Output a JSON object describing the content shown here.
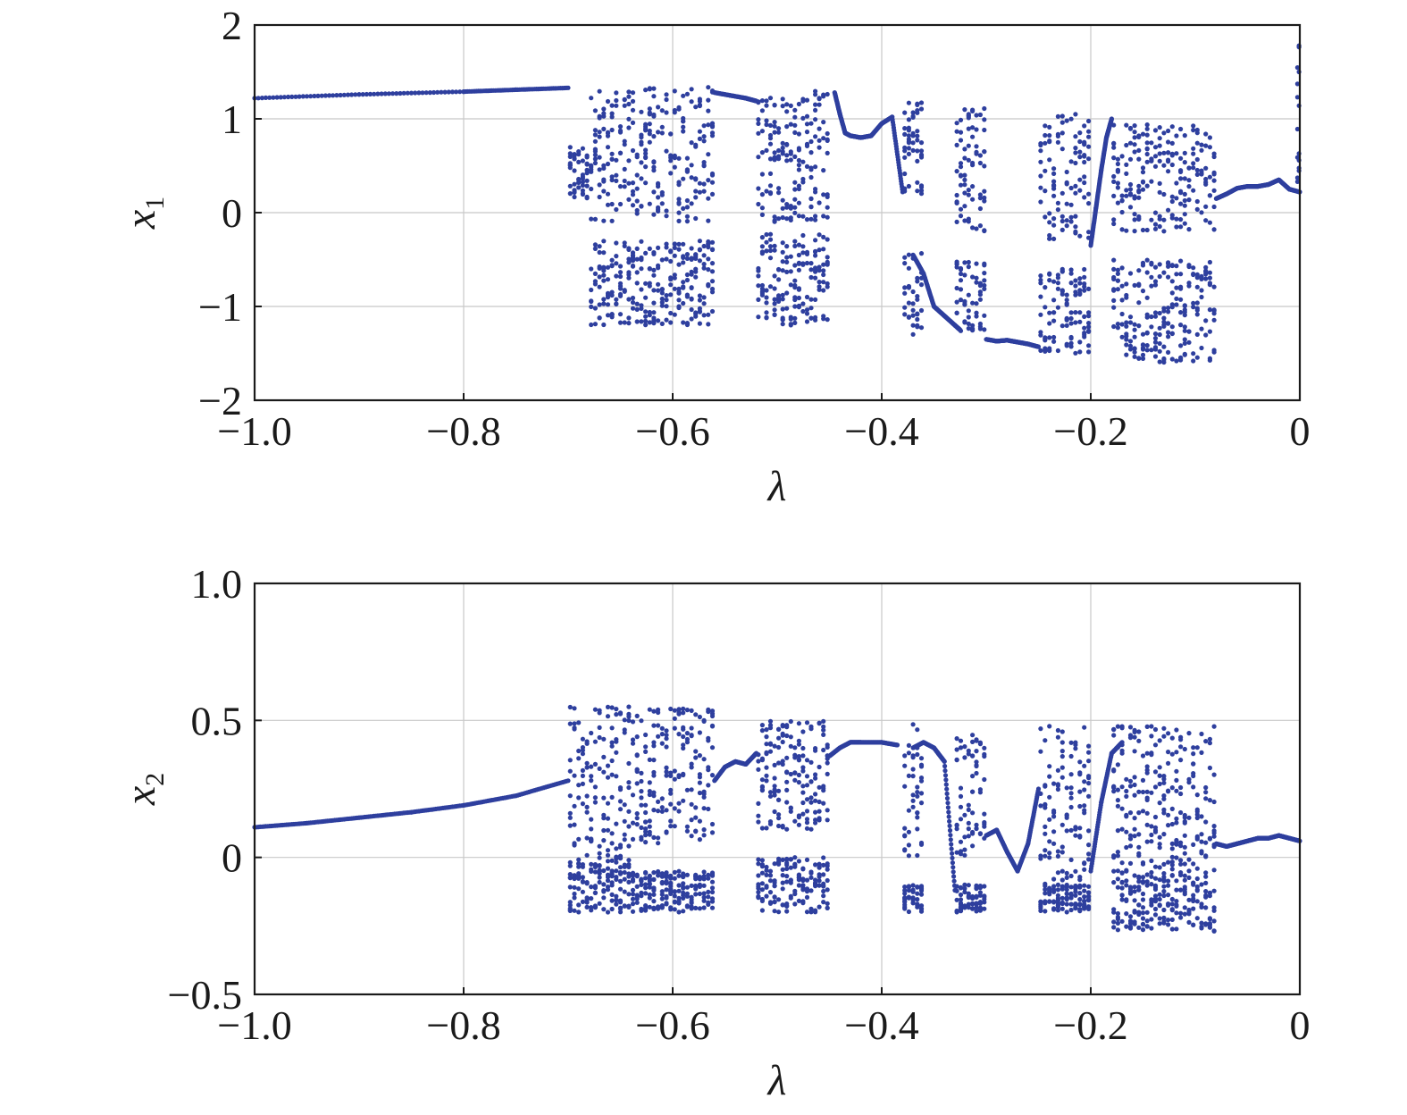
{
  "chart_data": [
    {
      "type": "scatter",
      "title": "",
      "xlabel": "λ",
      "ylabel": "x",
      "ylabel_subscript": "1",
      "xlim": [
        -1.0,
        0
      ],
      "ylim": [
        -2,
        2
      ],
      "xticks": [
        -1.0,
        -0.8,
        -0.6,
        -0.4,
        -0.2,
        0
      ],
      "xtick_labels": [
        "−1.0",
        "−0.8",
        "−0.6",
        "−0.4",
        "−0.2",
        "0"
      ],
      "yticks": [
        -2,
        -1,
        0,
        1,
        2
      ],
      "ytick_labels": [
        "−2",
        "−1",
        "0",
        "1",
        "2"
      ],
      "grid": true,
      "marker_color": "#2e3f9e",
      "series": [
        {
          "smooth_segments": [
            {
              "x": [
                -1.0,
                -0.9,
                -0.8,
                -0.75,
                -0.7
              ],
              "y": [
                1.22,
                1.26,
                1.29,
                1.31,
                1.33
              ]
            },
            {
              "x": [
                -0.56,
                -0.545,
                -0.53,
                -0.52
              ],
              "y": [
                1.28,
                1.25,
                1.22,
                1.19
              ]
            },
            {
              "x": [
                -0.445,
                -0.44,
                -0.435,
                -0.43,
                -0.42,
                -0.41,
                -0.4,
                -0.39,
                -0.38
              ],
              "y": [
                1.28,
                1.05,
                0.85,
                0.82,
                0.8,
                0.82,
                0.95,
                1.02,
                0.22
              ]
            },
            {
              "x": [
                -0.37,
                -0.36,
                -0.35,
                -0.34,
                -0.33,
                -0.325
              ],
              "y": [
                -0.45,
                -0.65,
                -1.0,
                -1.1,
                -1.2,
                -1.25
              ]
            },
            {
              "x": [
                -0.3,
                -0.29,
                -0.28,
                -0.27,
                -0.26,
                -0.25
              ],
              "y": [
                -1.35,
                -1.37,
                -1.36,
                -1.38,
                -1.4,
                -1.43
              ]
            },
            {
              "x": [
                -0.2,
                -0.195,
                -0.19,
                -0.185,
                -0.18
              ],
              "y": [
                -0.35,
                0.05,
                0.45,
                0.8,
                1.0
              ]
            },
            {
              "x": [
                -0.08,
                -0.07,
                -0.06,
                -0.05,
                -0.04,
                -0.03,
                -0.02,
                -0.01,
                0.0
              ],
              "y": [
                0.15,
                0.2,
                0.26,
                0.28,
                0.28,
                0.3,
                0.35,
                0.25,
                0.22
              ]
            }
          ],
          "scatter_bands": [
            {
              "x_min": -0.7,
              "x_max": -0.68,
              "y_ranges": [
                [
                  0.1,
                  0.7
                ]
              ]
            },
            {
              "x_min": -0.68,
              "x_max": -0.64,
              "y_ranges": [
                [
                  -0.1,
                  1.3
                ],
                [
                  -1.2,
                  -0.3
                ]
              ]
            },
            {
              "x_min": -0.64,
              "x_max": -0.56,
              "y_ranges": [
                [
                  -0.1,
                  1.35
                ],
                [
                  -1.2,
                  -0.3
                ]
              ]
            },
            {
              "x_min": -0.52,
              "x_max": -0.45,
              "y_ranges": [
                [
                  -0.1,
                  1.3
                ],
                [
                  -1.2,
                  -0.2
                ]
              ]
            },
            {
              "x_min": -0.38,
              "x_max": -0.36,
              "y_ranges": [
                [
                  0.2,
                  1.25
                ],
                [
                  -1.3,
                  -0.4
                ]
              ]
            },
            {
              "x_min": -0.33,
              "x_max": -0.3,
              "y_ranges": [
                [
                  -0.2,
                  1.15
                ],
                [
                  -1.3,
                  -0.5
                ]
              ]
            },
            {
              "x_min": -0.25,
              "x_max": -0.2,
              "y_ranges": [
                [
                  -0.3,
                  1.05
                ],
                [
                  -1.5,
                  -0.6
                ]
              ]
            },
            {
              "x_min": -0.18,
              "x_max": -0.08,
              "y_ranges": [
                [
                  -0.2,
                  0.95
                ],
                [
                  -1.6,
                  -0.5
                ]
              ]
            },
            {
              "x_min": -0.003,
              "x_max": 0.0,
              "y_ranges": [
                [
                  0.2,
                  1.8
                ]
              ]
            }
          ]
        }
      ]
    },
    {
      "type": "scatter",
      "title": "",
      "xlabel": "λ",
      "ylabel": "x",
      "ylabel_subscript": "2",
      "xlim": [
        -1.0,
        0
      ],
      "ylim": [
        -0.5,
        1.0
      ],
      "xticks": [
        -1.0,
        -0.8,
        -0.6,
        -0.4,
        -0.2,
        0
      ],
      "xtick_labels": [
        "−1.0",
        "−0.8",
        "−0.6",
        "−0.4",
        "−0.2",
        "0"
      ],
      "yticks": [
        -0.5,
        0,
        0.5,
        1.0
      ],
      "ytick_labels": [
        "−0.5",
        "0",
        "0.5",
        "1.0"
      ],
      "grid": true,
      "marker_color": "#2e3f9e",
      "series": [
        {
          "smooth_segments": [
            {
              "x": [
                -1.0,
                -0.95,
                -0.9,
                -0.85,
                -0.8,
                -0.75,
                -0.7
              ],
              "y": [
                0.11,
                0.125,
                0.145,
                0.165,
                0.19,
                0.225,
                0.28
              ]
            },
            {
              "x": [
                -0.56,
                -0.55,
                -0.54,
                -0.53,
                -0.52
              ],
              "y": [
                0.28,
                0.33,
                0.35,
                0.34,
                0.38
              ]
            },
            {
              "x": [
                -0.45,
                -0.44,
                -0.43,
                -0.42,
                -0.4,
                -0.385
              ],
              "y": [
                0.37,
                0.4,
                0.42,
                0.42,
                0.42,
                0.41
              ]
            },
            {
              "x": [
                -0.37,
                -0.36,
                -0.35,
                -0.34,
                -0.33
              ],
              "y": [
                0.4,
                0.42,
                0.4,
                0.35,
                -0.12
              ]
            },
            {
              "x": [
                -0.3,
                -0.29,
                -0.28,
                -0.27,
                -0.26,
                -0.25
              ],
              "y": [
                0.08,
                0.1,
                0.02,
                -0.05,
                0.05,
                0.25
              ]
            },
            {
              "x": [
                -0.2,
                -0.19,
                -0.18,
                -0.17
              ],
              "y": [
                -0.05,
                0.2,
                0.38,
                0.42
              ]
            },
            {
              "x": [
                -0.08,
                -0.07,
                -0.06,
                -0.05,
                -0.04,
                -0.03,
                -0.02,
                -0.01,
                0.0
              ],
              "y": [
                0.05,
                0.04,
                0.05,
                0.06,
                0.07,
                0.07,
                0.08,
                0.07,
                0.06
              ]
            }
          ],
          "scatter_bands": [
            {
              "x_min": -0.7,
              "x_max": -0.64,
              "y_ranges": [
                [
                  0.0,
                  0.55
                ],
                [
                  -0.2,
                  0.0
                ]
              ]
            },
            {
              "x_min": -0.64,
              "x_max": -0.56,
              "y_ranges": [
                [
                  0.05,
                  0.55
                ],
                [
                  -0.2,
                  -0.05
                ]
              ]
            },
            {
              "x_min": -0.52,
              "x_max": -0.45,
              "y_ranges": [
                [
                  0.1,
                  0.5
                ],
                [
                  -0.2,
                  0.0
                ]
              ]
            },
            {
              "x_min": -0.38,
              "x_max": -0.36,
              "y_ranges": [
                [
                  0.0,
                  0.5
                ],
                [
                  -0.2,
                  -0.1
                ]
              ]
            },
            {
              "x_min": -0.33,
              "x_max": -0.3,
              "y_ranges": [
                [
                  0.0,
                  0.47
                ],
                [
                  -0.2,
                  -0.1
                ]
              ]
            },
            {
              "x_min": -0.25,
              "x_max": -0.2,
              "y_ranges": [
                [
                  -0.1,
                  0.5
                ],
                [
                  -0.2,
                  -0.1
                ]
              ]
            },
            {
              "x_min": -0.18,
              "x_max": -0.08,
              "y_ranges": [
                [
                  -0.05,
                  0.48
                ],
                [
                  -0.27,
                  -0.05
                ]
              ]
            }
          ]
        }
      ]
    }
  ]
}
